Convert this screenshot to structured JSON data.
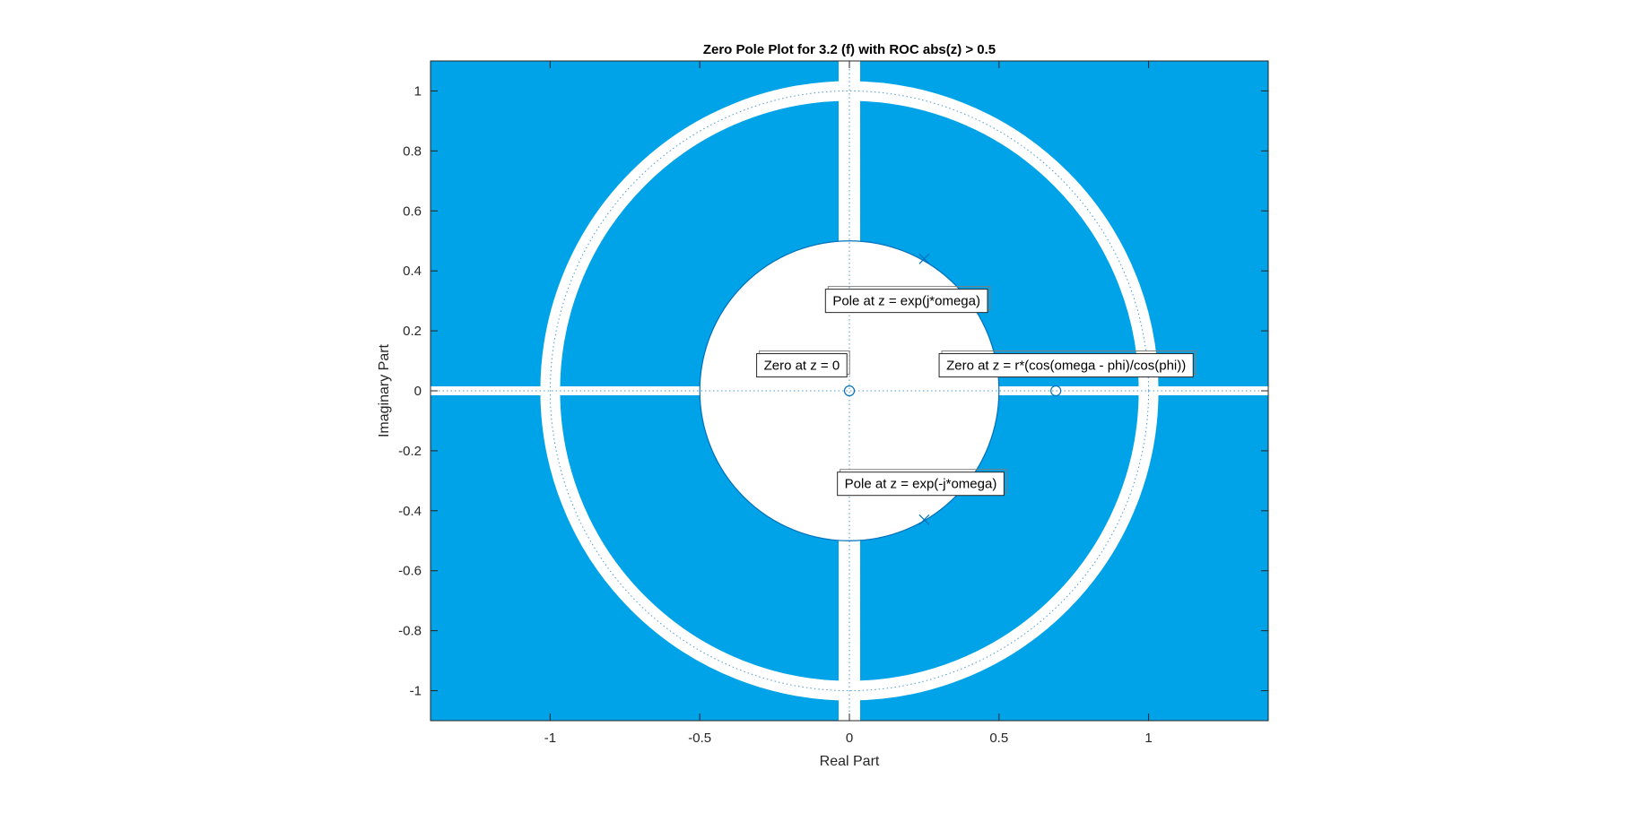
{
  "chart_data": {
    "type": "scatter",
    "title": "Zero Pole Plot for 3.2 (f) with ROC abs(z) > 0.5",
    "xlabel": "Real Part",
    "ylabel": "Imaginary Part",
    "xlim": [
      -1.4,
      1.4
    ],
    "ylim": [
      -1.1,
      1.1
    ],
    "xticks": [
      -1,
      -0.5,
      0,
      0.5,
      1
    ],
    "xtick_labels": [
      "-1",
      "-0.5",
      "0",
      "0.5",
      "1"
    ],
    "yticks": [
      1,
      0.8,
      0.6,
      0.4,
      0.2,
      0,
      -0.2,
      -0.4,
      -0.6,
      -0.8,
      -1
    ],
    "ytick_labels": [
      "1",
      "0.8",
      "0.6",
      "0.4",
      "0.2",
      "0",
      "-0.2",
      "-0.4",
      "-0.6",
      "-0.8",
      "-1"
    ],
    "grid": false,
    "roc_radius": 0.5,
    "roc_color": "#00a2e8",
    "marker_color": "#0072bd",
    "zeros": [
      {
        "x": 0,
        "y": 0
      },
      {
        "x": 0.69,
        "y": 0
      }
    ],
    "poles": [
      {
        "x": 0.25,
        "y": 0.44
      },
      {
        "x": 0.25,
        "y": -0.43
      }
    ],
    "annotations": [
      {
        "text": "Pole at z = exp(j*omega)",
        "x": -0.08,
        "y": 0.3
      },
      {
        "text": "Zero at z = 0",
        "x": -0.31,
        "y": 0.085
      },
      {
        "text": "Zero at z = r*(cos(omega - phi)/cos(phi))",
        "x": 0.3,
        "y": 0.085
      },
      {
        "text": "Pole at z = exp(-j*omega)",
        "x": -0.04,
        "y": -0.31
      }
    ]
  }
}
